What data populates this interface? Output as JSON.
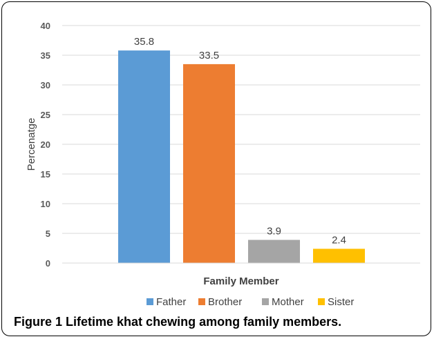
{
  "chart_data": {
    "type": "bar",
    "categories": [
      "Father",
      "Brother",
      "Mother",
      "Sister"
    ],
    "values": [
      35.8,
      33.5,
      3.9,
      2.4
    ],
    "data_labels": [
      "35.8",
      "33.5",
      "3.9",
      "2.4"
    ],
    "colors": [
      "#5b9bd5",
      "#ed7d31",
      "#a5a5a5",
      "#ffc000"
    ],
    "xlabel": "Family Member",
    "ylabel": "Percenatge",
    "ylim": [
      0,
      40
    ],
    "yticks": [
      "0",
      "5",
      "10",
      "15",
      "20",
      "25",
      "30",
      "35",
      "40"
    ],
    "grid": true,
    "legend_position": "bottom",
    "legend": [
      "Father",
      "Brother",
      "Mother",
      "Sister"
    ]
  },
  "caption": {
    "label": "Figure 1",
    "text": "Lifetime khat chewing among family members."
  }
}
